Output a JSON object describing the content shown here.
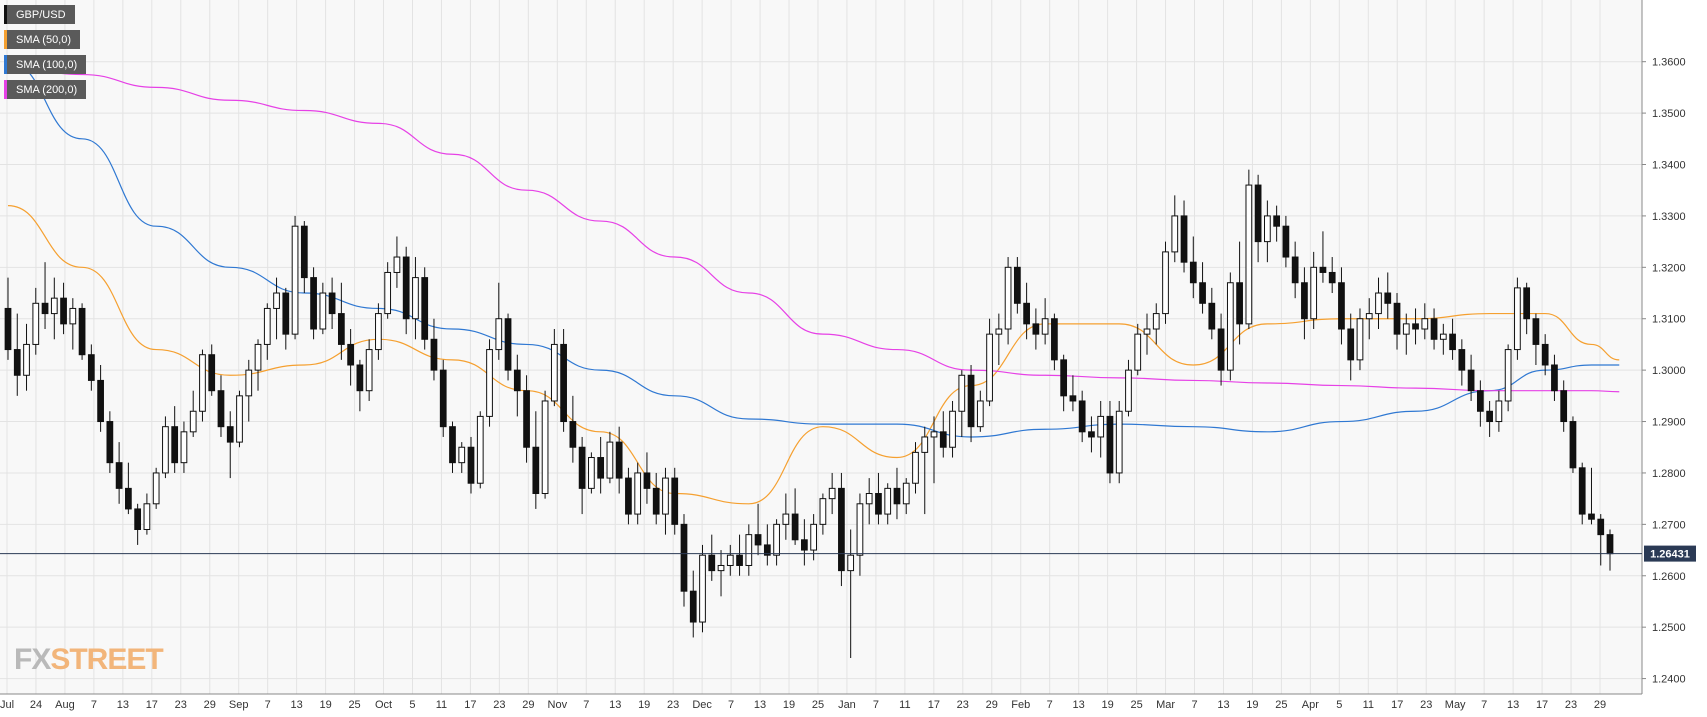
{
  "chart_data": {
    "type": "candlestick",
    "symbol": "GBP/USD",
    "timeframe": "daily",
    "x_tick_labels": [
      "Jul",
      "24",
      "Aug",
      "7",
      "13",
      "17",
      "23",
      "29",
      "Sep",
      "7",
      "13",
      "19",
      "25",
      "Oct",
      "5",
      "11",
      "17",
      "23",
      "29",
      "Nov",
      "7",
      "13",
      "19",
      "23",
      "Dec",
      "7",
      "13",
      "19",
      "25",
      "Jan",
      "7",
      "11",
      "17",
      "23",
      "29",
      "Feb",
      "7",
      "13",
      "19",
      "25",
      "Mar",
      "7",
      "13",
      "19",
      "25",
      "Apr",
      "5",
      "11",
      "17",
      "23",
      "May",
      "7",
      "13",
      "17",
      "23",
      "29"
    ],
    "y_ticks": [
      "1.3600",
      "1.3500",
      "1.3400",
      "1.3300",
      "1.3200",
      "1.3100",
      "1.3000",
      "1.2900",
      "1.2800",
      "1.2700",
      "1.2600",
      "1.2500",
      "1.2400"
    ],
    "ylim": [
      1.237,
      1.372
    ],
    "current_price": 1.26431,
    "current_price_label": "1.26431",
    "candles": [
      [
        1.312,
        1.318,
        1.302,
        1.304
      ],
      [
        1.304,
        1.311,
        1.295,
        1.299
      ],
      [
        1.299,
        1.309,
        1.296,
        1.305
      ],
      [
        1.305,
        1.316,
        1.303,
        1.313
      ],
      [
        1.313,
        1.321,
        1.308,
        1.311
      ],
      [
        1.311,
        1.318,
        1.306,
        1.314
      ],
      [
        1.314,
        1.317,
        1.307,
        1.309
      ],
      [
        1.309,
        1.314,
        1.304,
        1.312
      ],
      [
        1.312,
        1.313,
        1.302,
        1.303
      ],
      [
        1.303,
        1.305,
        1.296,
        1.298
      ],
      [
        1.298,
        1.301,
        1.288,
        1.29
      ],
      [
        1.29,
        1.292,
        1.28,
        1.282
      ],
      [
        1.282,
        1.286,
        1.274,
        1.277
      ],
      [
        1.277,
        1.282,
        1.272,
        1.273
      ],
      [
        1.273,
        1.274,
        1.266,
        1.269
      ],
      [
        1.269,
        1.276,
        1.268,
        1.274
      ],
      [
        1.274,
        1.281,
        1.273,
        1.28
      ],
      [
        1.28,
        1.291,
        1.279,
        1.289
      ],
      [
        1.289,
        1.293,
        1.28,
        1.282
      ],
      [
        1.282,
        1.29,
        1.28,
        1.288
      ],
      [
        1.288,
        1.296,
        1.287,
        1.292
      ],
      [
        1.292,
        1.304,
        1.29,
        1.303
      ],
      [
        1.303,
        1.305,
        1.295,
        1.296
      ],
      [
        1.296,
        1.299,
        1.287,
        1.289
      ],
      [
        1.289,
        1.292,
        1.279,
        1.286
      ],
      [
        1.286,
        1.296,
        1.285,
        1.295
      ],
      [
        1.295,
        1.302,
        1.29,
        1.3
      ],
      [
        1.3,
        1.306,
        1.296,
        1.305
      ],
      [
        1.305,
        1.313,
        1.302,
        1.312
      ],
      [
        1.312,
        1.318,
        1.306,
        1.315
      ],
      [
        1.315,
        1.316,
        1.304,
        1.307
      ],
      [
        1.307,
        1.33,
        1.306,
        1.328
      ],
      [
        1.328,
        1.329,
        1.315,
        1.318
      ],
      [
        1.318,
        1.32,
        1.306,
        1.308
      ],
      [
        1.308,
        1.317,
        1.307,
        1.315
      ],
      [
        1.315,
        1.318,
        1.308,
        1.311
      ],
      [
        1.311,
        1.317,
        1.302,
        1.305
      ],
      [
        1.305,
        1.308,
        1.297,
        1.301
      ],
      [
        1.301,
        1.302,
        1.292,
        1.296
      ],
      [
        1.296,
        1.306,
        1.294,
        1.304
      ],
      [
        1.304,
        1.313,
        1.302,
        1.311
      ],
      [
        1.311,
        1.321,
        1.31,
        1.319
      ],
      [
        1.319,
        1.326,
        1.316,
        1.322
      ],
      [
        1.322,
        1.324,
        1.307,
        1.31
      ],
      [
        1.31,
        1.322,
        1.306,
        1.318
      ],
      [
        1.318,
        1.32,
        1.304,
        1.306
      ],
      [
        1.306,
        1.31,
        1.298,
        1.3
      ],
      [
        1.3,
        1.302,
        1.287,
        1.289
      ],
      [
        1.289,
        1.29,
        1.28,
        1.282
      ],
      [
        1.282,
        1.286,
        1.28,
        1.285
      ],
      [
        1.285,
        1.287,
        1.276,
        1.278
      ],
      [
        1.278,
        1.292,
        1.277,
        1.291
      ],
      [
        1.291,
        1.306,
        1.289,
        1.304
      ],
      [
        1.304,
        1.317,
        1.302,
        1.31
      ],
      [
        1.31,
        1.311,
        1.298,
        1.3
      ],
      [
        1.3,
        1.303,
        1.291,
        1.296
      ],
      [
        1.296,
        1.299,
        1.282,
        1.285
      ],
      [
        1.285,
        1.292,
        1.273,
        1.276
      ],
      [
        1.276,
        1.296,
        1.275,
        1.294
      ],
      [
        1.294,
        1.308,
        1.293,
        1.305
      ],
      [
        1.305,
        1.308,
        1.288,
        1.29
      ],
      [
        1.29,
        1.295,
        1.282,
        1.285
      ],
      [
        1.285,
        1.287,
        1.272,
        1.277
      ],
      [
        1.277,
        1.284,
        1.276,
        1.283
      ],
      [
        1.283,
        1.287,
        1.276,
        1.279
      ],
      [
        1.279,
        1.288,
        1.278,
        1.286
      ],
      [
        1.286,
        1.289,
        1.276,
        1.279
      ],
      [
        1.279,
        1.281,
        1.27,
        1.272
      ],
      [
        1.272,
        1.282,
        1.27,
        1.28
      ],
      [
        1.28,
        1.284,
        1.274,
        1.277
      ],
      [
        1.277,
        1.28,
        1.27,
        1.272
      ],
      [
        1.272,
        1.281,
        1.268,
        1.279
      ],
      [
        1.279,
        1.281,
        1.268,
        1.27
      ],
      [
        1.27,
        1.272,
        1.254,
        1.257
      ],
      [
        1.257,
        1.261,
        1.248,
        1.251
      ],
      [
        1.251,
        1.266,
        1.249,
        1.264
      ],
      [
        1.264,
        1.268,
        1.259,
        1.261
      ],
      [
        1.261,
        1.265,
        1.256,
        1.262
      ],
      [
        1.262,
        1.266,
        1.26,
        1.264
      ],
      [
        1.264,
        1.268,
        1.26,
        1.262
      ],
      [
        1.262,
        1.27,
        1.26,
        1.268
      ],
      [
        1.268,
        1.274,
        1.264,
        1.266
      ],
      [
        1.266,
        1.27,
        1.262,
        1.264
      ],
      [
        1.264,
        1.271,
        1.262,
        1.27
      ],
      [
        1.27,
        1.276,
        1.267,
        1.272
      ],
      [
        1.272,
        1.277,
        1.266,
        1.267
      ],
      [
        1.267,
        1.271,
        1.262,
        1.265
      ],
      [
        1.265,
        1.272,
        1.263,
        1.27
      ],
      [
        1.27,
        1.276,
        1.268,
        1.275
      ],
      [
        1.275,
        1.28,
        1.272,
        1.277
      ],
      [
        1.277,
        1.28,
        1.258,
        1.261
      ],
      [
        1.261,
        1.269,
        1.244,
        1.264
      ],
      [
        1.264,
        1.276,
        1.26,
        1.274
      ],
      [
        1.274,
        1.279,
        1.27,
        1.276
      ],
      [
        1.276,
        1.28,
        1.27,
        1.272
      ],
      [
        1.272,
        1.278,
        1.27,
        1.277
      ],
      [
        1.277,
        1.281,
        1.271,
        1.274
      ],
      [
        1.274,
        1.279,
        1.272,
        1.278
      ],
      [
        1.278,
        1.286,
        1.276,
        1.284
      ],
      [
        1.284,
        1.289,
        1.272,
        1.287
      ],
      [
        1.287,
        1.291,
        1.278,
        1.288
      ],
      [
        1.288,
        1.292,
        1.283,
        1.285
      ],
      [
        1.285,
        1.294,
        1.283,
        1.292
      ],
      [
        1.292,
        1.3,
        1.287,
        1.299
      ],
      [
        1.299,
        1.301,
        1.286,
        1.289
      ],
      [
        1.289,
        1.296,
        1.288,
        1.294
      ],
      [
        1.294,
        1.31,
        1.293,
        1.307
      ],
      [
        1.307,
        1.311,
        1.301,
        1.308
      ],
      [
        1.308,
        1.322,
        1.305,
        1.32
      ],
      [
        1.32,
        1.322,
        1.311,
        1.313
      ],
      [
        1.313,
        1.317,
        1.306,
        1.309
      ],
      [
        1.309,
        1.312,
        1.304,
        1.307
      ],
      [
        1.307,
        1.314,
        1.305,
        1.31
      ],
      [
        1.31,
        1.311,
        1.3,
        1.302
      ],
      [
        1.302,
        1.303,
        1.292,
        1.295
      ],
      [
        1.295,
        1.299,
        1.292,
        1.294
      ],
      [
        1.294,
        1.296,
        1.286,
        1.288
      ],
      [
        1.288,
        1.291,
        1.284,
        1.287
      ],
      [
        1.287,
        1.294,
        1.283,
        1.291
      ],
      [
        1.291,
        1.294,
        1.278,
        1.28
      ],
      [
        1.28,
        1.294,
        1.278,
        1.292
      ],
      [
        1.292,
        1.302,
        1.291,
        1.3
      ],
      [
        1.3,
        1.309,
        1.299,
        1.307
      ],
      [
        1.307,
        1.311,
        1.303,
        1.308
      ],
      [
        1.308,
        1.313,
        1.305,
        1.311
      ],
      [
        1.311,
        1.325,
        1.309,
        1.323
      ],
      [
        1.323,
        1.334,
        1.321,
        1.33
      ],
      [
        1.33,
        1.333,
        1.319,
        1.321
      ],
      [
        1.321,
        1.326,
        1.314,
        1.317
      ],
      [
        1.317,
        1.321,
        1.311,
        1.313
      ],
      [
        1.313,
        1.316,
        1.306,
        1.308
      ],
      [
        1.308,
        1.311,
        1.297,
        1.3
      ],
      [
        1.3,
        1.319,
        1.298,
        1.317
      ],
      [
        1.317,
        1.325,
        1.305,
        1.309
      ],
      [
        1.309,
        1.339,
        1.308,
        1.336
      ],
      [
        1.336,
        1.338,
        1.321,
        1.325
      ],
      [
        1.325,
        1.333,
        1.321,
        1.33
      ],
      [
        1.33,
        1.332,
        1.325,
        1.328
      ],
      [
        1.328,
        1.33,
        1.32,
        1.322
      ],
      [
        1.322,
        1.325,
        1.314,
        1.317
      ],
      [
        1.317,
        1.32,
        1.306,
        1.31
      ],
      [
        1.31,
        1.323,
        1.308,
        1.32
      ],
      [
        1.32,
        1.327,
        1.317,
        1.319
      ],
      [
        1.319,
        1.322,
        1.315,
        1.317
      ],
      [
        1.317,
        1.32,
        1.305,
        1.308
      ],
      [
        1.308,
        1.311,
        1.298,
        1.302
      ],
      [
        1.302,
        1.312,
        1.3,
        1.31
      ],
      [
        1.31,
        1.314,
        1.306,
        1.311
      ],
      [
        1.311,
        1.318,
        1.308,
        1.315
      ],
      [
        1.315,
        1.319,
        1.31,
        1.313
      ],
      [
        1.313,
        1.315,
        1.304,
        1.307
      ],
      [
        1.307,
        1.311,
        1.303,
        1.309
      ],
      [
        1.309,
        1.312,
        1.305,
        1.308
      ],
      [
        1.308,
        1.313,
        1.306,
        1.31
      ],
      [
        1.31,
        1.312,
        1.304,
        1.306
      ],
      [
        1.306,
        1.309,
        1.303,
        1.307
      ],
      [
        1.307,
        1.31,
        1.302,
        1.304
      ],
      [
        1.304,
        1.306,
        1.297,
        1.3
      ],
      [
        1.3,
        1.303,
        1.294,
        1.296
      ],
      [
        1.296,
        1.298,
        1.289,
        1.292
      ],
      [
        1.292,
        1.294,
        1.287,
        1.29
      ],
      [
        1.29,
        1.296,
        1.288,
        1.294
      ],
      [
        1.294,
        1.305,
        1.292,
        1.304
      ],
      [
        1.304,
        1.318,
        1.302,
        1.316
      ],
      [
        1.316,
        1.317,
        1.307,
        1.31
      ],
      [
        1.31,
        1.311,
        1.301,
        1.305
      ],
      [
        1.305,
        1.307,
        1.299,
        1.301
      ],
      [
        1.301,
        1.303,
        1.294,
        1.296
      ],
      [
        1.296,
        1.298,
        1.288,
        1.29
      ],
      [
        1.29,
        1.291,
        1.28,
        1.281
      ],
      [
        1.281,
        1.282,
        1.27,
        1.272
      ],
      [
        1.272,
        1.281,
        1.27,
        1.271
      ],
      [
        1.271,
        1.272,
        1.262,
        1.268
      ],
      [
        1.268,
        1.269,
        1.261,
        1.2643
      ]
    ],
    "sma": [
      {
        "name": "SMA (50,0)",
        "color": "#f5a030",
        "x": [
          0,
          8,
          16,
          24,
          32,
          40,
          48,
          56,
          64,
          72,
          80,
          88,
          96,
          104,
          112,
          120,
          128,
          136,
          144,
          152,
          160,
          166,
          171,
          174
        ],
        "y": [
          1.332,
          1.32,
          1.304,
          1.299,
          1.301,
          1.306,
          1.302,
          1.296,
          1.288,
          1.276,
          1.274,
          1.289,
          1.283,
          1.297,
          1.309,
          1.309,
          1.301,
          1.309,
          1.31,
          1.31,
          1.311,
          1.311,
          1.305,
          1.302
        ]
      },
      {
        "name": "SMA (100,0)",
        "color": "#2f78d2",
        "x": [
          0,
          8,
          16,
          24,
          32,
          40,
          48,
          56,
          64,
          72,
          80,
          88,
          96,
          104,
          112,
          120,
          128,
          136,
          144,
          152,
          160,
          166,
          171,
          174
        ],
        "y": [
          1.36,
          1.345,
          1.328,
          1.32,
          1.315,
          1.312,
          1.308,
          1.305,
          1.3,
          1.295,
          1.2905,
          1.2895,
          1.2895,
          1.287,
          1.2885,
          1.2895,
          1.289,
          1.288,
          1.29,
          1.292,
          1.296,
          1.3,
          1.301,
          1.301
        ]
      },
      {
        "name": "SMA (200,0)",
        "color": "#e641e6",
        "x": [
          0,
          8,
          16,
          24,
          32,
          40,
          48,
          56,
          64,
          72,
          80,
          88,
          96,
          104,
          112,
          120,
          128,
          136,
          144,
          152,
          160,
          166,
          171,
          174
        ],
        "y": [
          1.359,
          1.3575,
          1.355,
          1.3525,
          1.3505,
          1.348,
          1.342,
          1.335,
          1.329,
          1.322,
          1.315,
          1.307,
          1.304,
          1.3,
          1.299,
          1.2985,
          1.298,
          1.2975,
          1.297,
          1.2965,
          1.296,
          1.296,
          1.296,
          1.2958
        ]
      }
    ],
    "colors": {
      "up_body": "#ffffff",
      "down_body": "#111111",
      "wick": "#111111",
      "grid": "#e3e3e3",
      "price_line": "#2b3a55",
      "price_label_bg": "#2b3a55",
      "axis_text": "#333333"
    }
  },
  "legend": [
    {
      "label": "GBP/USD",
      "color": "#111111"
    },
    {
      "label": "SMA (50,0)",
      "color": "#f5a030"
    },
    {
      "label": "SMA (100,0)",
      "color": "#2f78d2"
    },
    {
      "label": "SMA (200,0)",
      "color": "#e641e6"
    }
  ],
  "logo": {
    "part1": "FX",
    "part2": "STREET"
  }
}
